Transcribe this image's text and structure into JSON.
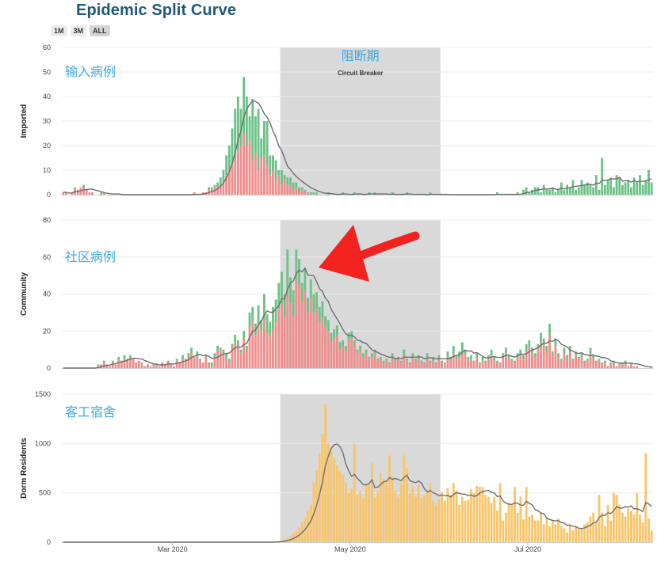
{
  "title": "Epidemic Split Curve",
  "range_buttons": [
    "1M",
    "3M",
    "ALL"
  ],
  "active_range": "ALL",
  "shade": {
    "start": "2020-04-07",
    "end": "2020-06-01",
    "title": "阻断期",
    "subtitle": "Circuit Breaker"
  },
  "x_ticks": [
    {
      "date": "2020-03-01",
      "label": "Mar 2020"
    },
    {
      "date": "2020-05-01",
      "label": "May 2020"
    },
    {
      "date": "2020-07-01",
      "label": "Jul 2020"
    }
  ],
  "colors": {
    "red": "#f08d8d",
    "green": "#6cc287",
    "orange": "#f9c56a",
    "line": "#6f6f6f",
    "shade": "#d9d9d9",
    "arrow": "#f2231f",
    "label": "#3fa9df"
  },
  "chart_data": [
    {
      "type": "bar",
      "name": "imported",
      "ylabel": "Imported",
      "cn_label": "输入病例",
      "ylim": [
        0,
        60
      ],
      "yticks": [
        0,
        10,
        20,
        30,
        40,
        50,
        60
      ],
      "stacked": true,
      "moving_average": true,
      "x_start": "2020-01-23",
      "x_end": "2020-08-12",
      "series": [
        {
          "color": "red",
          "values": [
            1,
            1,
            0,
            1,
            2,
            2,
            3,
            3,
            2,
            1,
            1,
            0,
            0,
            0,
            1,
            0,
            0,
            0,
            0,
            0,
            0,
            0,
            0,
            0,
            0,
            0,
            0,
            0,
            0,
            0,
            0,
            0,
            0,
            0,
            0,
            0,
            0,
            0,
            0,
            0,
            0,
            0,
            0,
            0,
            0,
            1,
            0,
            0,
            1,
            1,
            2,
            2,
            3,
            3,
            4,
            5,
            8,
            10,
            12,
            15,
            18,
            20,
            25,
            20,
            22,
            14,
            17,
            10,
            15,
            16,
            12,
            8,
            10,
            6,
            8,
            4,
            6,
            4,
            4,
            2,
            3,
            1,
            2,
            1,
            1,
            0,
            0,
            0,
            0,
            0,
            0,
            0,
            0,
            0,
            0,
            0,
            0,
            0,
            0,
            0,
            0,
            0,
            0,
            0,
            0,
            0,
            0,
            0,
            0,
            0,
            0,
            0,
            0,
            0,
            0,
            0,
            0,
            0,
            0,
            0,
            0,
            0,
            0,
            0,
            0,
            0,
            0,
            0,
            0,
            0,
            0,
            0,
            0,
            0,
            0,
            0,
            0,
            0,
            0,
            0,
            0,
            0,
            0,
            0,
            0,
            0,
            0,
            0,
            0,
            0,
            0,
            0,
            0,
            0,
            0,
            0,
            0,
            0,
            0,
            0,
            0,
            0,
            0,
            0,
            0,
            0,
            0,
            0,
            0,
            0,
            0,
            0,
            0,
            0,
            0,
            0,
            0,
            0,
            0,
            0,
            0,
            0,
            0,
            0,
            0,
            0,
            0,
            0,
            0,
            0,
            0,
            0,
            0,
            0,
            0,
            0,
            0,
            0,
            0,
            0,
            0,
            0,
            0,
            0,
            0
          ]
        },
        {
          "color": "green",
          "values": [
            0,
            0,
            0,
            0,
            1,
            0,
            0,
            1,
            0,
            0,
            0,
            0,
            0,
            1,
            0,
            0,
            0,
            0,
            0,
            0,
            0,
            0,
            0,
            0,
            0,
            0,
            0,
            0,
            0,
            0,
            0,
            0,
            0,
            0,
            0,
            0,
            0,
            0,
            0,
            0,
            0,
            0,
            0,
            0,
            0,
            0,
            0,
            0,
            0,
            0,
            1,
            1,
            1,
            2,
            3,
            5,
            8,
            10,
            15,
            20,
            22,
            15,
            23,
            20,
            10,
            25,
            15,
            25,
            8,
            14,
            18,
            8,
            6,
            8,
            2,
            6,
            2,
            3,
            3,
            3,
            2,
            2,
            1,
            1,
            0,
            1,
            1,
            1,
            0,
            0,
            0,
            1,
            0,
            0,
            0,
            0,
            1,
            0,
            0,
            0,
            1,
            0,
            0,
            0,
            0,
            1,
            0,
            1,
            0,
            0,
            0,
            0,
            0,
            1,
            0,
            0,
            0,
            0,
            1,
            0,
            0,
            0,
            0,
            0,
            0,
            0,
            1,
            0,
            0,
            0,
            0,
            0,
            0,
            0,
            0,
            0,
            0,
            0,
            0,
            0,
            0,
            0,
            0,
            0,
            0,
            0,
            0,
            0,
            0,
            1,
            0,
            0,
            0,
            0,
            0,
            0,
            1,
            0,
            2,
            3,
            1,
            2,
            3,
            3,
            1,
            4,
            2,
            2,
            3,
            1,
            2,
            5,
            2,
            4,
            3,
            6,
            2,
            3,
            6,
            4,
            5,
            4,
            3,
            8,
            2,
            15,
            4,
            6,
            7,
            3,
            8,
            7,
            4,
            5,
            6,
            3,
            7,
            5,
            8,
            4,
            6,
            10,
            5,
            7,
            4,
            6,
            9,
            4,
            12,
            6,
            5,
            4
          ]
        }
      ]
    },
    {
      "type": "bar",
      "name": "community",
      "ylabel": "Community",
      "cn_label": "社区病例",
      "ylim": [
        0,
        80
      ],
      "yticks": [
        0,
        20,
        40,
        60,
        80
      ],
      "stacked": true,
      "moving_average": true,
      "x_start": "2020-01-23",
      "x_end": "2020-08-12",
      "series": [
        {
          "color": "red",
          "values": [
            0,
            0,
            0,
            0,
            0,
            0,
            0,
            0,
            0,
            0,
            0,
            0,
            1,
            2,
            3,
            2,
            1,
            3,
            2,
            4,
            3,
            5,
            4,
            6,
            5,
            3,
            4,
            2,
            1,
            2,
            1,
            1,
            2,
            1,
            3,
            2,
            3,
            2,
            1,
            4,
            3,
            5,
            4,
            6,
            8,
            5,
            7,
            4,
            3,
            6,
            2,
            1,
            6,
            9,
            10,
            8,
            5,
            3,
            11,
            14,
            12,
            8,
            16,
            9,
            22,
            25,
            18,
            24,
            20,
            26,
            19,
            17,
            21,
            25,
            32,
            35,
            28,
            40,
            35,
            28,
            48,
            45,
            36,
            42,
            30,
            38,
            30,
            32,
            25,
            27,
            22,
            20,
            14,
            16,
            18,
            10,
            12,
            9,
            15,
            16,
            12,
            8,
            10,
            6,
            8,
            5,
            6,
            8,
            4,
            5,
            3,
            4,
            2,
            6,
            4,
            5,
            3,
            7,
            4,
            2,
            6,
            4,
            5,
            3,
            2,
            6,
            3,
            4,
            2,
            5,
            3,
            2,
            6,
            4,
            8,
            5,
            6,
            9,
            7,
            4,
            5,
            3,
            6,
            2,
            4,
            3,
            5,
            7,
            4,
            3,
            2,
            6,
            8,
            5,
            4,
            3,
            6,
            7,
            5,
            9,
            11,
            8,
            6,
            10,
            14,
            12,
            9,
            18,
            7,
            12,
            6,
            4,
            8,
            5,
            9,
            4,
            7,
            5,
            6,
            3,
            4,
            8,
            5,
            3,
            4,
            2,
            3,
            1,
            2,
            3,
            1,
            2,
            2,
            3,
            1,
            2,
            1,
            1,
            0,
            0,
            0,
            0,
            1,
            0,
            0,
            4,
            1
          ]
        },
        {
          "color": "green",
          "values": [
            0,
            0,
            0,
            0,
            0,
            0,
            0,
            0,
            0,
            0,
            0,
            0,
            1,
            0,
            1,
            0,
            0,
            1,
            0,
            2,
            1,
            2,
            1,
            1,
            0,
            0,
            0,
            1,
            0,
            0,
            0,
            1,
            0,
            0,
            0,
            0,
            1,
            0,
            0,
            1,
            0,
            2,
            1,
            2,
            3,
            1,
            2,
            1,
            0,
            1,
            1,
            2,
            2,
            3,
            1,
            2,
            3,
            2,
            2,
            4,
            3,
            2,
            4,
            3,
            8,
            8,
            6,
            10,
            6,
            14,
            10,
            8,
            12,
            12,
            14,
            17,
            12,
            24,
            14,
            14,
            16,
            14,
            10,
            12,
            8,
            10,
            10,
            9,
            8,
            9,
            6,
            6,
            5,
            5,
            5,
            4,
            3,
            3,
            4,
            4,
            3,
            2,
            2,
            2,
            2,
            1,
            2,
            2,
            1,
            1,
            1,
            1,
            1,
            2,
            1,
            1,
            1,
            3,
            1,
            1,
            2,
            1,
            2,
            1,
            1,
            2,
            1,
            2,
            1,
            2,
            1,
            1,
            3,
            2,
            4,
            2,
            3,
            5,
            3,
            2,
            2,
            1,
            2,
            1,
            2,
            1,
            2,
            3,
            2,
            1,
            1,
            2,
            3,
            2,
            1,
            1,
            2,
            3,
            2,
            4,
            4,
            3,
            2,
            3,
            5,
            4,
            3,
            6,
            2,
            4,
            2,
            1,
            3,
            2,
            3,
            1,
            2,
            1,
            2,
            1,
            1,
            3,
            2,
            1,
            1,
            1,
            1,
            0,
            1,
            1,
            0,
            1,
            1,
            1,
            0,
            1,
            0,
            0,
            0,
            0,
            0,
            0,
            0,
            0,
            0,
            1,
            0
          ]
        }
      ]
    },
    {
      "type": "bar",
      "name": "dorm",
      "ylabel": "Dorm Residents",
      "cn_label": "客工宿舍",
      "ylim": [
        0,
        1500
      ],
      "yticks": [
        0,
        500,
        1000,
        1500
      ],
      "stacked": false,
      "moving_average": true,
      "x_start": "2020-01-23",
      "x_end": "2020-08-12",
      "series": [
        {
          "color": "orange",
          "values": [
            0,
            0,
            0,
            0,
            0,
            0,
            0,
            0,
            0,
            0,
            0,
            0,
            0,
            0,
            0,
            0,
            0,
            0,
            0,
            0,
            0,
            0,
            0,
            0,
            0,
            0,
            0,
            0,
            0,
            0,
            0,
            0,
            0,
            0,
            0,
            0,
            0,
            0,
            0,
            0,
            0,
            0,
            0,
            0,
            0,
            0,
            0,
            0,
            0,
            0,
            0,
            0,
            0,
            0,
            0,
            0,
            0,
            0,
            0,
            0,
            0,
            0,
            0,
            0,
            0,
            0,
            0,
            0,
            0,
            0,
            0,
            0,
            5,
            8,
            12,
            20,
            30,
            40,
            60,
            90,
            110,
            150,
            200,
            250,
            320,
            380,
            600,
            730,
            900,
            1100,
            1400,
            1000,
            920,
            860,
            780,
            720,
            680,
            600,
            500,
            540,
            1000,
            480,
            520,
            440,
            580,
            600,
            800,
            450,
            520,
            700,
            640,
            600,
            880,
            660,
            520,
            460,
            600,
            880,
            750,
            500,
            570,
            460,
            580,
            450,
            480,
            520,
            600,
            420,
            380,
            440,
            510,
            420,
            550,
            480,
            600,
            520,
            380,
            460,
            420,
            430,
            540,
            500,
            570,
            560,
            560,
            480,
            460,
            400,
            460,
            320,
            600,
            220,
            300,
            400,
            380,
            560,
            300,
            460,
            230,
            560,
            260,
            280,
            220,
            220,
            300,
            180,
            250,
            160,
            220,
            180,
            240,
            160,
            140,
            100,
            180,
            120,
            160,
            130,
            140,
            180,
            200,
            260,
            300,
            200,
            480,
            300,
            160,
            380,
            220,
            500,
            480,
            380,
            300,
            260,
            340,
            320,
            280,
            500,
            280,
            200,
            900,
            240,
            120,
            80,
            60,
            60,
            70
          ]
        }
      ]
    }
  ]
}
